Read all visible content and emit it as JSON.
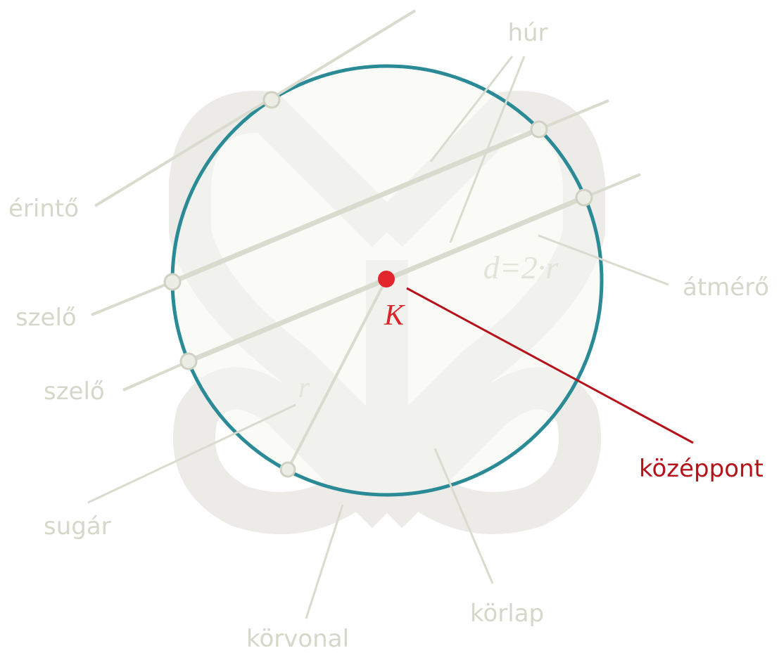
{
  "labels": {
    "chord": "húr",
    "tangent": "érintő",
    "secant_1": "szelő",
    "secant_2": "szelő",
    "diameter": "átmérő",
    "center": "középpont",
    "radius": "sugár",
    "circumference": "körvonal",
    "disk": "körlap"
  },
  "symbols": {
    "center": "K",
    "radius": "r",
    "diameter_formula": "d=2·r"
  }
}
